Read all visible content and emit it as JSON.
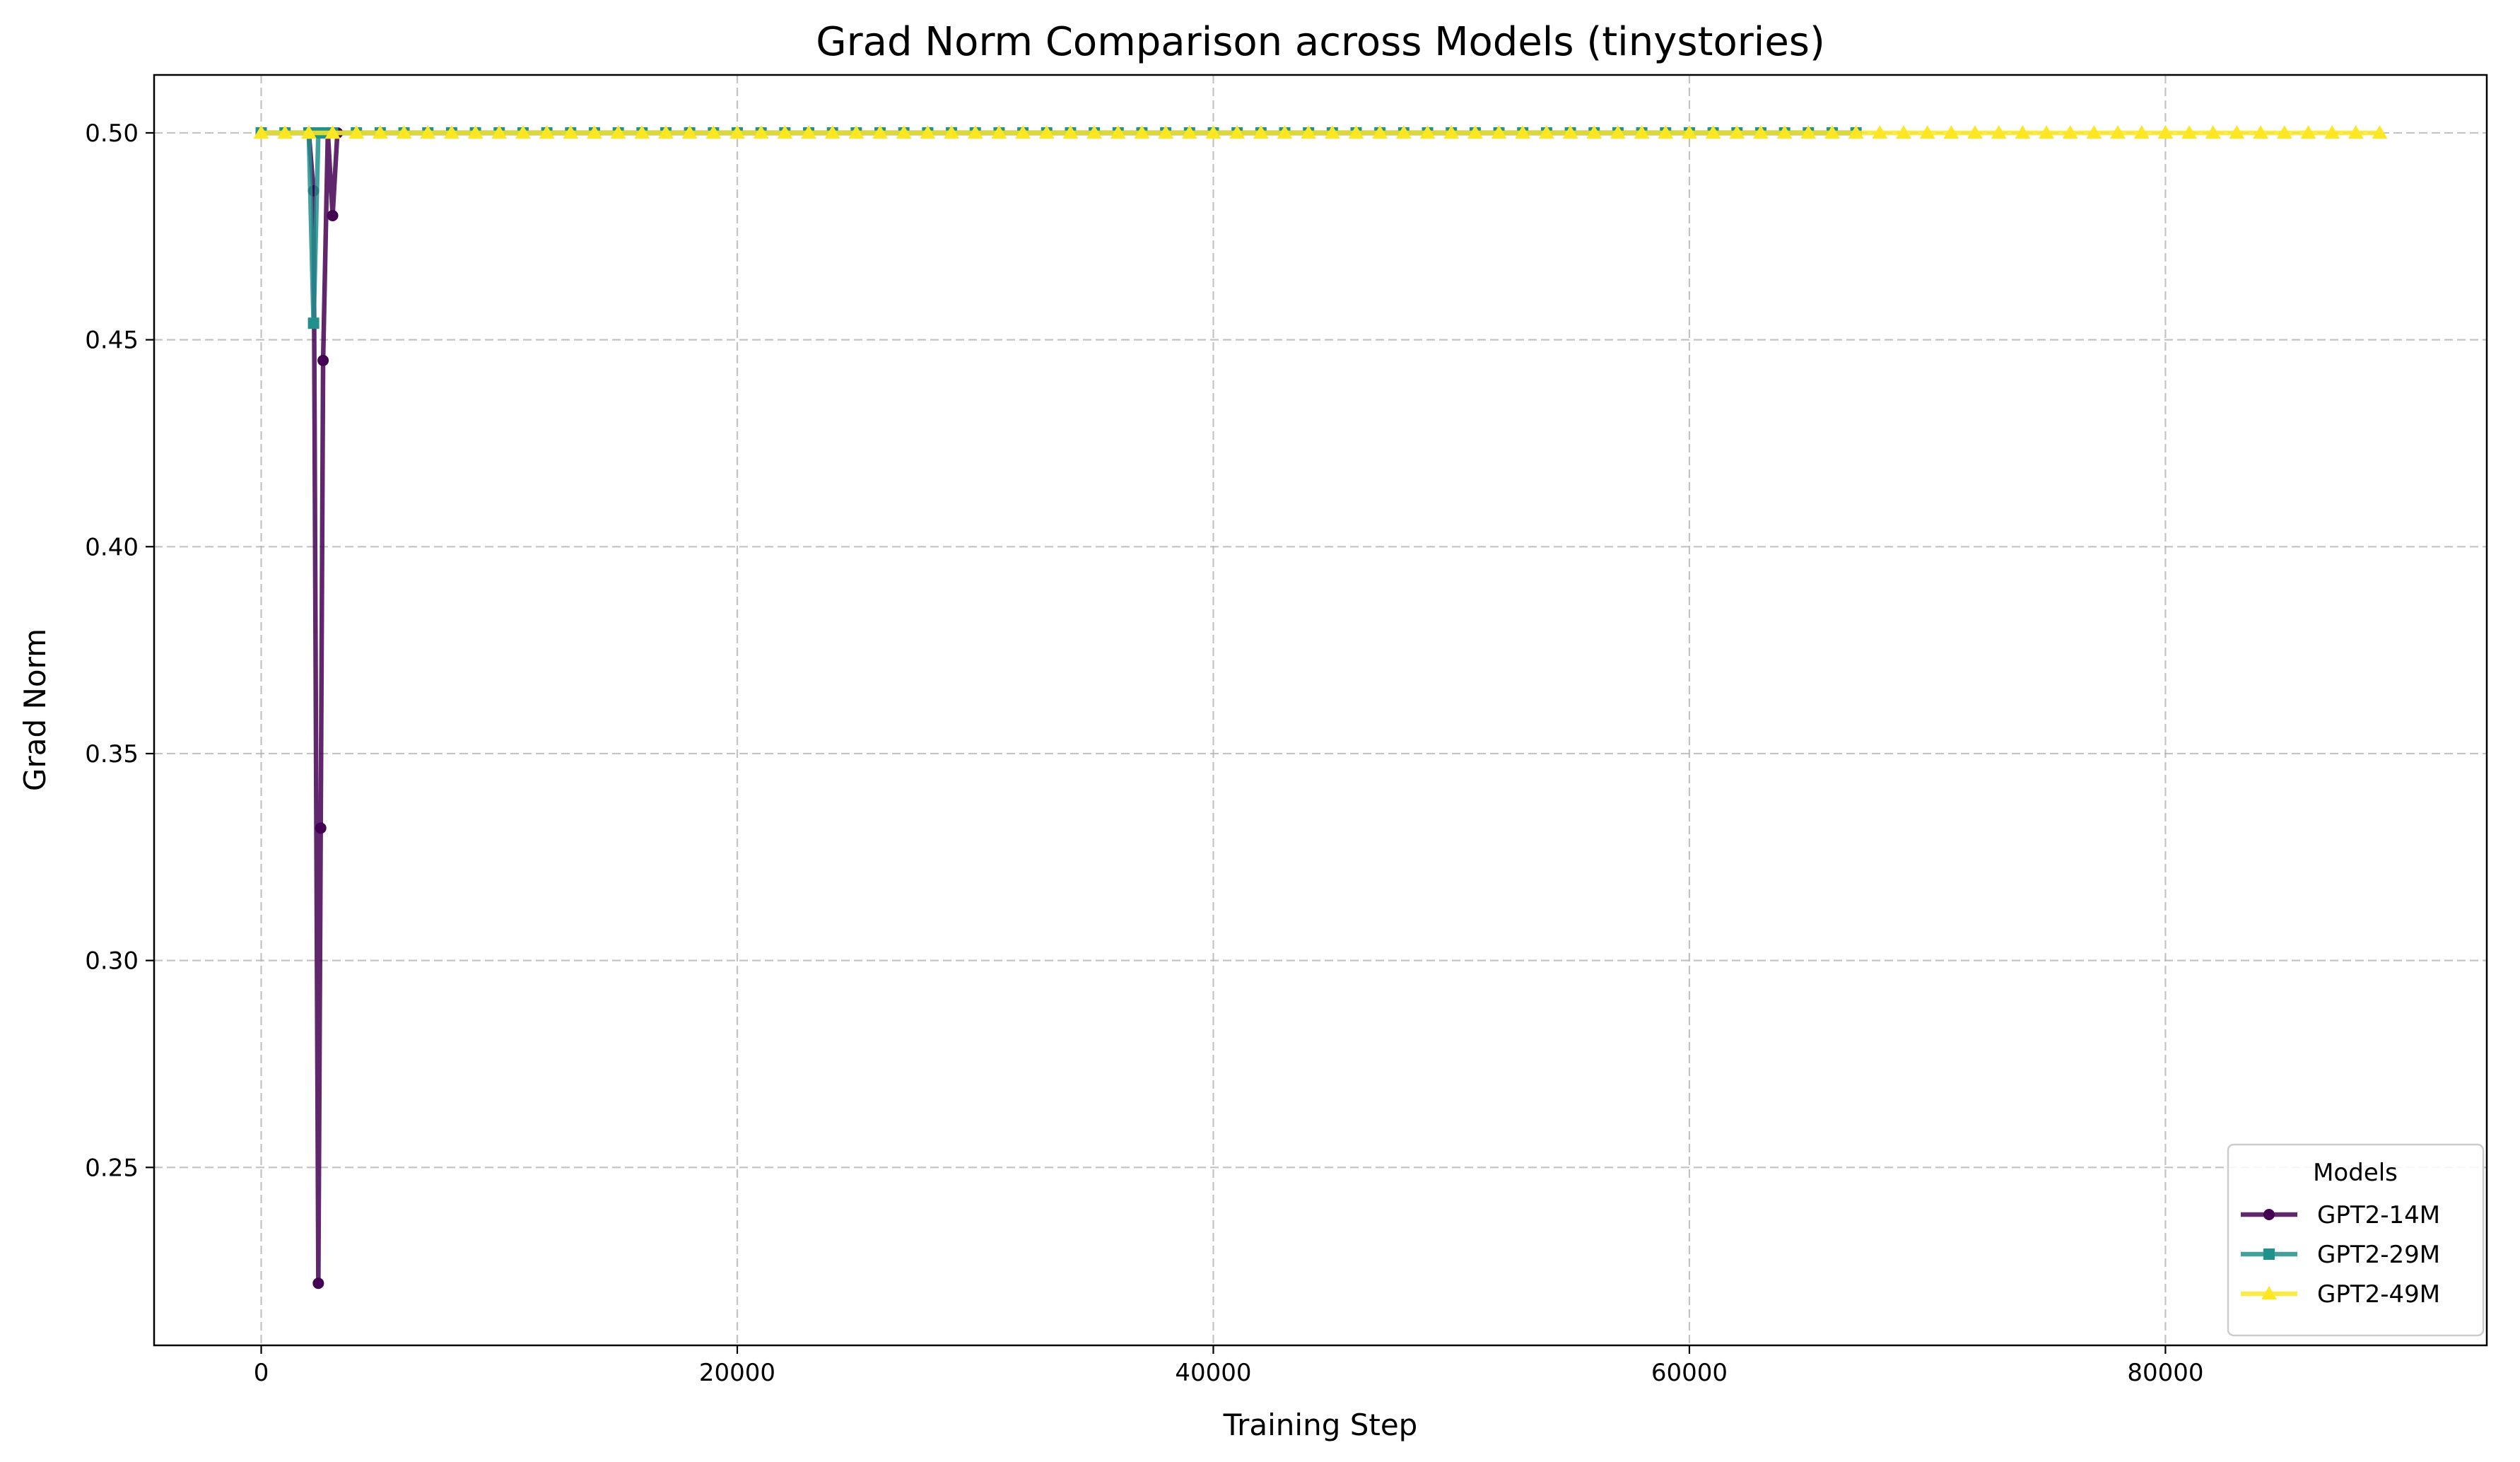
{
  "chart_data": {
    "type": "line",
    "title": "Grad Norm Comparison across Models (tinystories)",
    "xlabel": "Training Step",
    "ylabel": "Grad Norm",
    "xlim": [
      -4500,
      93500
    ],
    "ylim": [
      0.207,
      0.514
    ],
    "xticks": [
      0,
      20000,
      40000,
      60000,
      80000
    ],
    "yticks": [
      0.25,
      0.3,
      0.35,
      0.4,
      0.45,
      0.5
    ],
    "xtick_labels": [
      "0",
      "20000",
      "40000",
      "60000",
      "80000"
    ],
    "ytick_labels": [
      "0.25",
      "0.30",
      "0.35",
      "0.40",
      "0.45",
      "0.50"
    ],
    "grid": true,
    "legend": {
      "title": "Models",
      "position": "lower-right"
    },
    "series": [
      {
        "name": "GPT2-14M",
        "color": "#440154",
        "marker": "circle",
        "x": [
          0,
          1000,
          2000,
          2200,
          2400,
          2500,
          2600,
          2800,
          3000,
          3200,
          4000,
          6000,
          10000,
          20000,
          30000,
          40000,
          50000,
          60000,
          67000
        ],
        "y": [
          0.5,
          0.5,
          0.5,
          0.486,
          0.222,
          0.332,
          0.445,
          0.5,
          0.48,
          0.5,
          0.5,
          0.5,
          0.5,
          0.5,
          0.5,
          0.5,
          0.5,
          0.5,
          0.5
        ]
      },
      {
        "name": "GPT2-29M",
        "color": "#21918c",
        "marker": "square",
        "x": [
          0,
          1000,
          2000,
          2200,
          2400,
          2600,
          4000,
          10000,
          20000,
          30000,
          40000,
          50000,
          60000,
          67000
        ],
        "y": [
          0.5,
          0.5,
          0.5,
          0.454,
          0.5,
          0.5,
          0.5,
          0.5,
          0.5,
          0.5,
          0.5,
          0.5,
          0.5,
          0.5
        ],
        "marker_count": 68
      },
      {
        "name": "GPT2-49M",
        "color": "#fde725",
        "marker": "triangle",
        "x": [
          0,
          89000
        ],
        "y": [
          0.5,
          0.5
        ],
        "marker_count": 90
      }
    ]
  }
}
